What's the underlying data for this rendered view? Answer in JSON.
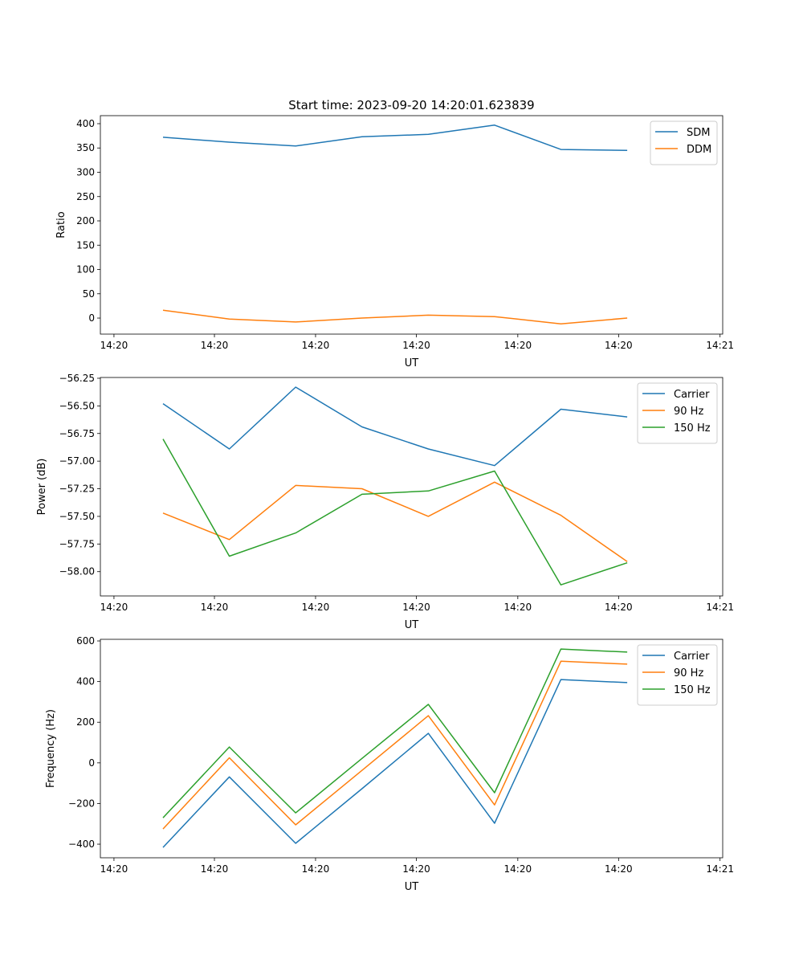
{
  "title": "Start time: 2023-09-20 14:20:01.623839",
  "colors": {
    "blue": "#1f77b4",
    "orange": "#ff7f0e",
    "green": "#2ca02c"
  },
  "chart_data": [
    {
      "type": "line",
      "title": "Start time: 2023-09-20 14:20:01.623839",
      "xlabel": "UT",
      "ylabel": "Ratio",
      "x": [
        0,
        1,
        2,
        3,
        4,
        5,
        6,
        7
      ],
      "xlim": [
        -0.945,
        8.44
      ],
      "xticks": [
        -0.74,
        0.775,
        2.3,
        3.82,
        5.35,
        6.87,
        8.4
      ],
      "xticklabels": [
        "14:20",
        "14:20",
        "14:20",
        "14:20",
        "14:20",
        "14:20",
        "14:21"
      ],
      "ylim": [
        -33,
        416.5
      ],
      "yticks": [
        0,
        50,
        100,
        150,
        200,
        250,
        300,
        350,
        400
      ],
      "yticklabels": [
        "0",
        "50",
        "100",
        "150",
        "200",
        "250",
        "300",
        "350",
        "400"
      ],
      "legend": "top-right",
      "series": [
        {
          "name": "SDM",
          "color": "#1f77b4",
          "values": [
            372,
            362,
            354,
            373,
            378,
            397,
            347,
            345
          ]
        },
        {
          "name": "DDM",
          "color": "#ff7f0e",
          "values": [
            16,
            -2,
            -8,
            0,
            6,
            3,
            -12,
            0
          ]
        }
      ]
    },
    {
      "type": "line",
      "xlabel": "UT",
      "ylabel": "Power (dB)",
      "x": [
        0,
        1,
        2,
        3,
        4,
        5,
        6,
        7
      ],
      "xlim": [
        -0.945,
        8.44
      ],
      "xticks": [
        -0.74,
        0.775,
        2.3,
        3.82,
        5.35,
        6.87,
        8.4
      ],
      "xticklabels": [
        "14:20",
        "14:20",
        "14:20",
        "14:20",
        "14:20",
        "14:20",
        "14:21"
      ],
      "ylim": [
        -58.22,
        -56.243
      ],
      "yticks": [
        -58.0,
        -57.75,
        -57.5,
        -57.25,
        -57.0,
        -56.75,
        -56.5,
        -56.25
      ],
      "yticklabels": [
        "−58.00",
        "−57.75",
        "−57.50",
        "−57.25",
        "−57.00",
        "−56.75",
        "−56.50",
        "−56.25"
      ],
      "legend": "top-right",
      "series": [
        {
          "name": "Carrier",
          "color": "#1f77b4",
          "values": [
            -56.48,
            -56.89,
            -56.33,
            -56.69,
            -56.89,
            -57.04,
            -56.53,
            -56.6
          ]
        },
        {
          "name": "90 Hz",
          "color": "#ff7f0e",
          "values": [
            -57.47,
            -57.71,
            -57.22,
            -57.25,
            -57.5,
            -57.19,
            -57.49,
            -57.91
          ]
        },
        {
          "name": "150 Hz",
          "color": "#2ca02c",
          "values": [
            -56.8,
            -57.86,
            -57.65,
            -57.3,
            -57.27,
            -57.09,
            -58.12,
            -57.92
          ]
        }
      ]
    },
    {
      "type": "line",
      "xlabel": "UT",
      "ylabel": "Frequency (Hz)",
      "x": [
        0,
        1,
        2,
        3,
        4,
        5,
        6,
        7
      ],
      "xlim": [
        -0.945,
        8.44
      ],
      "xticks": [
        -0.74,
        0.775,
        2.3,
        3.82,
        5.35,
        6.87,
        8.4
      ],
      "xticklabels": [
        "14:20",
        "14:20",
        "14:20",
        "14:20",
        "14:20",
        "14:20",
        "14:21"
      ],
      "ylim": [
        -467,
        608
      ],
      "yticks": [
        -400,
        -200,
        0,
        200,
        400,
        600
      ],
      "yticklabels": [
        "−400",
        "−200",
        "0",
        "200",
        "400",
        "600"
      ],
      "legend": "top-right",
      "series": [
        {
          "name": "Carrier",
          "color": "#1f77b4",
          "values": [
            -416,
            -69,
            -396,
            -127,
            145,
            -297,
            410,
            395
          ]
        },
        {
          "name": "90 Hz",
          "color": "#ff7f0e",
          "values": [
            -325,
            25,
            -305,
            -37,
            232,
            -207,
            500,
            486
          ]
        },
        {
          "name": "150 Hz",
          "color": "#2ca02c",
          "values": [
            -270,
            78,
            -246,
            22,
            288,
            -147,
            560,
            545
          ]
        }
      ]
    }
  ]
}
